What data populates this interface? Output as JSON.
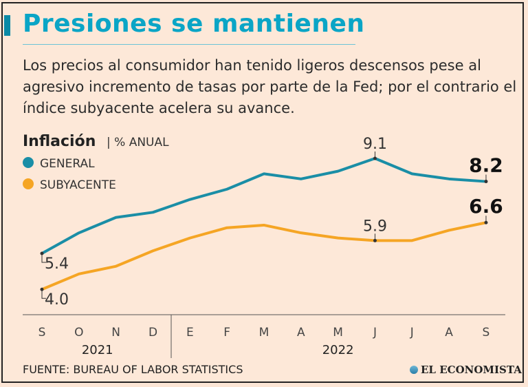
{
  "title": "Presiones se mantienen",
  "subtitle": "Los precios al consumidor han tenido ligeros descensos pese al agresivo incremento de tasas por parte de la Fed; por el contrario el índice subyacente acelera su avance.",
  "source": "FUENTE: BUREAU OF LABOR STATISTICS",
  "logo": "EL ECONOMISTA",
  "chart_data": {
    "type": "line",
    "title": "Inflación",
    "unit": "| % ANUAL",
    "categories": [
      "S",
      "O",
      "N",
      "D",
      "E",
      "F",
      "M",
      "A",
      "M",
      "J",
      "J",
      "A",
      "S"
    ],
    "years": [
      {
        "label": "2021",
        "from": 0,
        "to": 3
      },
      {
        "label": "2022",
        "from": 4,
        "to": 12
      }
    ],
    "series": [
      {
        "name": "GENERAL",
        "color": "#1a8ea6",
        "values": [
          5.4,
          6.2,
          6.8,
          7.0,
          7.5,
          7.9,
          8.5,
          8.3,
          8.6,
          9.1,
          8.5,
          8.3,
          8.2
        ]
      },
      {
        "name": "SUBYACENTE",
        "color": "#f5a524",
        "values": [
          4.0,
          4.6,
          4.9,
          5.5,
          6.0,
          6.4,
          6.5,
          6.2,
          6.0,
          5.9,
          5.9,
          6.3,
          6.6
        ]
      }
    ],
    "annotations": [
      {
        "series": 0,
        "index": 0,
        "text": "5.4",
        "pos": "below"
      },
      {
        "series": 0,
        "index": 9,
        "text": "9.1",
        "pos": "above"
      },
      {
        "series": 0,
        "index": 12,
        "text": "8.2",
        "pos": "above",
        "bold": true
      },
      {
        "series": 1,
        "index": 0,
        "text": "4.0",
        "pos": "below"
      },
      {
        "series": 1,
        "index": 9,
        "text": "5.9",
        "pos": "above"
      },
      {
        "series": 1,
        "index": 12,
        "text": "6.6",
        "pos": "above",
        "bold": true
      }
    ],
    "ylim": [
      3.3,
      9.6
    ],
    "legend": "top-left"
  }
}
